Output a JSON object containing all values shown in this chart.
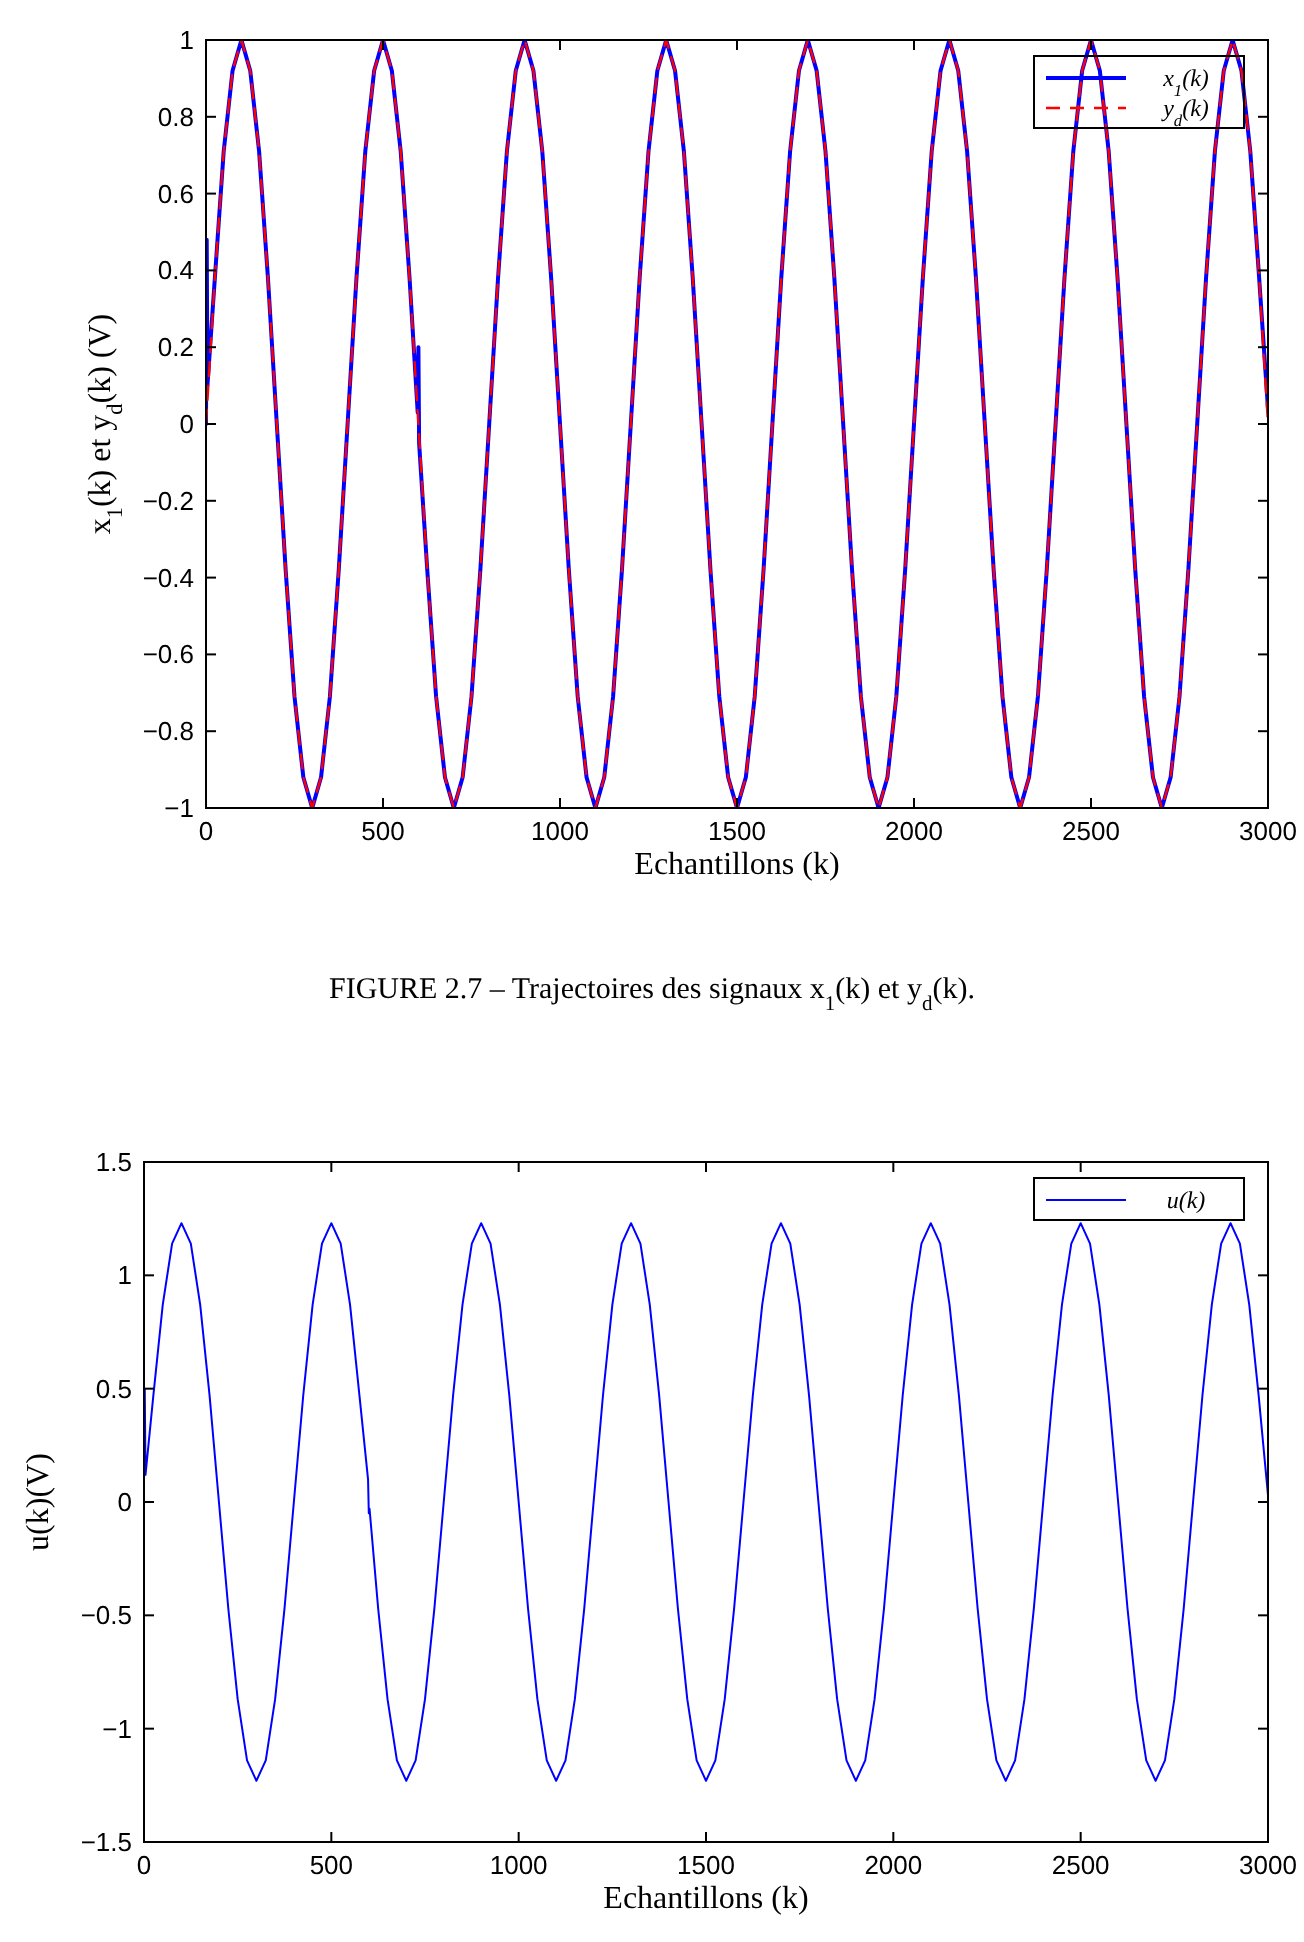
{
  "chart_data": [
    {
      "type": "line",
      "xlabel": "Echantillons (k)",
      "ylabel": "x$_{1}$(k) et y$_{d}$(k) (V)",
      "annotations": [
        "FIGURE 2.7 – Trajectoires des signaux x$_{1}$(k) et y$_{d}$(k)."
      ],
      "xlim": [
        0,
        3000
      ],
      "ylim": [
        -1,
        1
      ],
      "xticks": [
        0,
        500,
        1000,
        1500,
        2000,
        2500,
        3000
      ],
      "yticks": [
        {
          "value": -1,
          "label": "−1"
        },
        {
          "value": -0.8,
          "label": "−0.8"
        },
        {
          "value": -0.6,
          "label": "−0.6"
        },
        {
          "value": -0.4,
          "label": "−0.4"
        },
        {
          "value": -0.2,
          "label": "−0.2"
        },
        0,
        0.2,
        0.4,
        0.6,
        0.8,
        1
      ],
      "grid": false,
      "legend": "top right",
      "marker": "none",
      "x": [
        0,
        25,
        50,
        75,
        100,
        125,
        150,
        175,
        200,
        225,
        250,
        275,
        300,
        325,
        350,
        375,
        400,
        425,
        450,
        475,
        500,
        525,
        550,
        575,
        600,
        625,
        650,
        675,
        700,
        725,
        750,
        775,
        800,
        825,
        850,
        875,
        900,
        925,
        950,
        975,
        1000,
        1025,
        1050,
        1075,
        1100,
        1125,
        1150,
        1175,
        1200,
        1225,
        1250,
        1275,
        1300,
        1325,
        1350,
        1375,
        1400,
        1425,
        1450,
        1475,
        1500,
        1525,
        1550,
        1575,
        1600,
        1625,
        1650,
        1675,
        1700,
        1725,
        1750,
        1775,
        1800,
        1825,
        1850,
        1875,
        1900,
        1925,
        1950,
        1975,
        2000,
        2025,
        2050,
        2075,
        2100,
        2125,
        2150,
        2175,
        2200,
        2225,
        2250,
        2275,
        2300,
        2325,
        2350,
        2375,
        2400,
        2425,
        2450,
        2475,
        2500,
        2525,
        2550,
        2575,
        2600,
        2625,
        2650,
        2675,
        2700,
        2725,
        2750,
        2775,
        2800,
        2825,
        2850,
        2875,
        2900,
        2925,
        2950,
        2975,
        3000
      ],
      "series": [
        {
          "name": "x$_{1}$(k)",
          "color": "#0000ff",
          "line_style": "solid",
          "x": [
            0,
            2,
            4,
            25,
            50,
            75,
            100,
            125,
            150,
            175,
            200,
            225,
            250,
            275,
            300,
            325,
            350,
            375,
            400,
            425,
            450,
            475,
            500,
            525,
            550,
            575,
            598,
            600,
            602,
            625,
            650,
            675,
            700,
            725,
            750,
            775,
            800,
            825,
            850,
            875,
            900,
            925,
            950,
            975,
            1000,
            1025,
            1050,
            1075,
            1100,
            1125,
            1150,
            1175,
            1200,
            1225,
            1250,
            1275,
            1300,
            1325,
            1350,
            1375,
            1400,
            1425,
            1450,
            1475,
            1500,
            1525,
            1550,
            1575,
            1600,
            1625,
            1650,
            1675,
            1700,
            1725,
            1750,
            1775,
            1800,
            1825,
            1850,
            1875,
            1900,
            1925,
            1950,
            1975,
            2000,
            2025,
            2050,
            2075,
            2100,
            2125,
            2150,
            2175,
            2200,
            2225,
            2250,
            2275,
            2300,
            2325,
            2350,
            2375,
            2400,
            2425,
            2450,
            2475,
            2500,
            2525,
            2550,
            2575,
            2600,
            2625,
            2650,
            2675,
            2700,
            2725,
            2750,
            2775,
            2800,
            2825,
            2850,
            2875,
            2900,
            2925,
            2950,
            2975,
            3000
          ],
          "values": [
            0,
            0.48,
            0.1,
            0.38,
            0.71,
            0.92,
            1,
            0.92,
            0.71,
            0.38,
            0,
            -0.38,
            -0.71,
            -0.92,
            -1,
            -0.92,
            -0.71,
            -0.38,
            0,
            0.38,
            0.71,
            0.92,
            1,
            0.92,
            0.71,
            0.38,
            0.03,
            0.2,
            -0.05,
            -0.38,
            -0.71,
            -0.92,
            -1,
            -0.92,
            -0.71,
            -0.38,
            0,
            0.38,
            0.71,
            0.92,
            1,
            0.92,
            0.71,
            0.38,
            0,
            -0.38,
            -0.71,
            -0.92,
            -1,
            -0.92,
            -0.71,
            -0.38,
            0,
            0.38,
            0.71,
            0.92,
            1,
            0.92,
            0.71,
            0.38,
            0,
            -0.38,
            -0.71,
            -0.92,
            -1,
            -0.92,
            -0.71,
            -0.38,
            0,
            0.38,
            0.71,
            0.92,
            1,
            0.92,
            0.71,
            0.38,
            0,
            -0.38,
            -0.71,
            -0.92,
            -1,
            -0.92,
            -0.71,
            -0.38,
            0,
            0.38,
            0.71,
            0.92,
            1,
            0.92,
            0.71,
            0.38,
            0,
            -0.38,
            -0.71,
            -0.92,
            -1,
            -0.92,
            -0.71,
            -0.38,
            0,
            0.38,
            0.71,
            0.92,
            1,
            0.92,
            0.71,
            0.38,
            0,
            -0.38,
            -0.71,
            -0.92,
            -1,
            -0.92,
            -0.71,
            -0.38,
            0,
            0.38,
            0.71,
            0.92,
            1,
            0.92,
            0.71,
            0.38,
            0.04
          ]
        },
        {
          "name": "y$_{d}$(k)",
          "color": "#ff0000",
          "line_style": "dashed",
          "values": [
            0,
            0.38,
            0.71,
            0.92,
            1,
            0.92,
            0.71,
            0.38,
            0,
            -0.38,
            -0.71,
            -0.92,
            -1,
            -0.92,
            -0.71,
            -0.38,
            0,
            0.38,
            0.71,
            0.92,
            1,
            0.92,
            0.71,
            0.38,
            0,
            -0.38,
            -0.71,
            -0.92,
            -1,
            -0.92,
            -0.71,
            -0.38,
            0,
            0.38,
            0.71,
            0.92,
            1,
            0.92,
            0.71,
            0.38,
            0,
            -0.38,
            -0.71,
            -0.92,
            -1,
            -0.92,
            -0.71,
            -0.38,
            0,
            0.38,
            0.71,
            0.92,
            1,
            0.92,
            0.71,
            0.38,
            0,
            -0.38,
            -0.71,
            -0.92,
            -1,
            -0.92,
            -0.71,
            -0.38,
            0,
            0.38,
            0.71,
            0.92,
            1,
            0.92,
            0.71,
            0.38,
            0,
            -0.38,
            -0.71,
            -0.92,
            -1,
            -0.92,
            -0.71,
            -0.38,
            0,
            0.38,
            0.71,
            0.92,
            1,
            0.92,
            0.71,
            0.38,
            0,
            -0.38,
            -0.71,
            -0.92,
            -1,
            -0.92,
            -0.71,
            -0.38,
            0,
            0.38,
            0.71,
            0.92,
            1,
            0.92,
            0.71,
            0.38,
            0,
            -0.38,
            -0.71,
            -0.92,
            -1,
            -0.92,
            -0.71,
            -0.38,
            0,
            0.38,
            0.71,
            0.92,
            1,
            0.92,
            0.71,
            0.38,
            0
          ]
        }
      ]
    },
    {
      "type": "line",
      "xlabel": "Echantillons (k)",
      "ylabel": "u(k)(V)",
      "xlim": [
        0,
        3000
      ],
      "ylim": [
        -1.5,
        1.5
      ],
      "xticks": [
        0,
        500,
        1000,
        1500,
        2000,
        2500,
        3000
      ],
      "yticks": [
        {
          "value": -1.5,
          "label": "−1.5"
        },
        {
          "value": -1,
          "label": "−1"
        },
        {
          "value": -0.5,
          "label": "−0.5"
        },
        0,
        0.5,
        1,
        1.5
      ],
      "grid": false,
      "legend": "top right",
      "marker": "none",
      "series": [
        {
          "name": "u(k)",
          "color": "#0000ff",
          "line_style": "solid",
          "x": [
            0,
            2,
            4,
            25,
            50,
            75,
            100,
            125,
            150,
            175,
            200,
            225,
            250,
            275,
            300,
            325,
            350,
            375,
            400,
            425,
            450,
            475,
            500,
            525,
            550,
            575,
            598,
            600,
            602,
            625,
            650,
            675,
            700,
            725,
            750,
            775,
            800,
            825,
            850,
            875,
            900,
            925,
            950,
            975,
            1000,
            1025,
            1050,
            1075,
            1100,
            1125,
            1150,
            1175,
            1200,
            1225,
            1250,
            1275,
            1300,
            1325,
            1350,
            1375,
            1400,
            1425,
            1450,
            1475,
            1500,
            1525,
            1550,
            1575,
            1600,
            1625,
            1650,
            1675,
            1700,
            1725,
            1750,
            1775,
            1800,
            1825,
            1850,
            1875,
            1900,
            1925,
            1950,
            1975,
            2000,
            2025,
            2050,
            2075,
            2100,
            2125,
            2150,
            2175,
            2200,
            2225,
            2250,
            2275,
            2300,
            2325,
            2350,
            2375,
            2400,
            2425,
            2450,
            2475,
            2500,
            2525,
            2550,
            2575,
            2600,
            2625,
            2650,
            2675,
            2700,
            2725,
            2750,
            2775,
            2800,
            2825,
            2850,
            2875,
            2900,
            2925,
            2950,
            2975,
            3000
          ],
          "values": [
            0.1,
            0.5,
            0.12,
            0.47,
            0.87,
            1.14,
            1.23,
            1.14,
            0.87,
            0.47,
            0,
            -0.47,
            -0.87,
            -1.14,
            -1.23,
            -1.14,
            -0.87,
            -0.47,
            0,
            0.47,
            0.87,
            1.14,
            1.23,
            1.14,
            0.87,
            0.47,
            0.1,
            -0.05,
            -0.03,
            -0.47,
            -0.87,
            -1.14,
            -1.23,
            -1.14,
            -0.87,
            -0.47,
            0,
            0.47,
            0.87,
            1.14,
            1.23,
            1.14,
            0.87,
            0.47,
            0,
            -0.47,
            -0.87,
            -1.14,
            -1.23,
            -1.14,
            -0.87,
            -0.47,
            0,
            0.47,
            0.87,
            1.14,
            1.23,
            1.14,
            0.87,
            0.47,
            0,
            -0.47,
            -0.87,
            -1.14,
            -1.23,
            -1.14,
            -0.87,
            -0.47,
            0,
            0.47,
            0.87,
            1.14,
            1.23,
            1.14,
            0.87,
            0.47,
            0,
            -0.47,
            -0.87,
            -1.14,
            -1.23,
            -1.14,
            -0.87,
            -0.47,
            0,
            0.47,
            0.87,
            1.14,
            1.23,
            1.14,
            0.87,
            0.47,
            0,
            -0.47,
            -0.87,
            -1.14,
            -1.23,
            -1.14,
            -0.87,
            -0.47,
            0,
            0.47,
            0.87,
            1.14,
            1.23,
            1.14,
            0.87,
            0.47,
            0,
            -0.47,
            -0.87,
            -1.14,
            -1.23,
            -1.14,
            -0.87,
            -0.47,
            0,
            0.47,
            0.87,
            1.14,
            1.23,
            1.14,
            0.87,
            0.47,
            0.03
          ]
        }
      ]
    }
  ]
}
